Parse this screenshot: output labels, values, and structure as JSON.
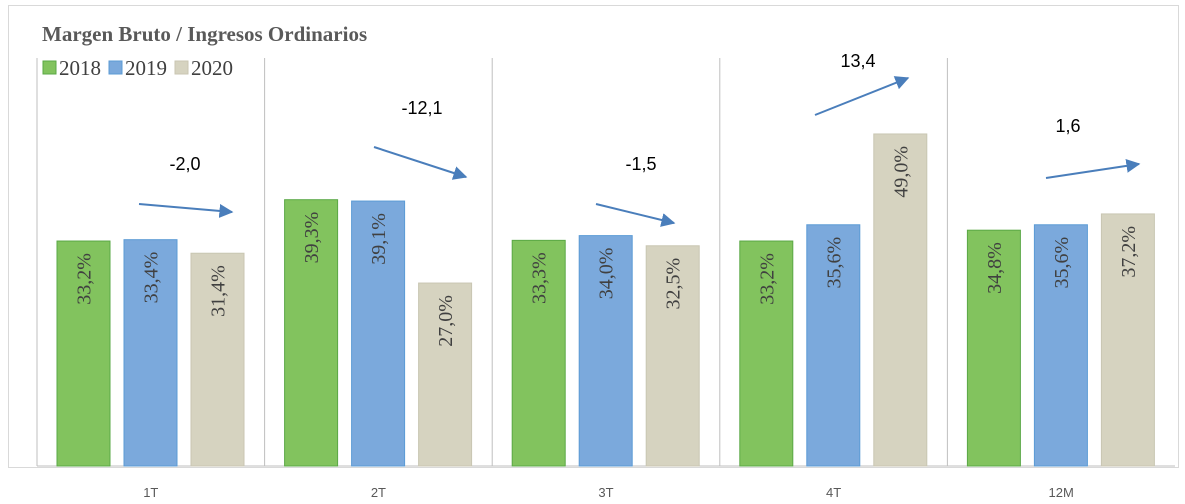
{
  "chart_data": {
    "type": "bar",
    "title": "Margen Bruto / Ingresos Ordinarios",
    "categories": [
      "1T",
      "2T",
      "3T",
      "4T",
      "12M"
    ],
    "series": [
      {
        "name": "2018",
        "color": "#82c35e",
        "values": [
          33.2,
          39.3,
          33.3,
          33.2,
          34.8
        ],
        "value_labels": [
          "33,2%",
          "39,3%",
          "33,3%",
          "33,2%",
          "34,8%"
        ]
      },
      {
        "name": "2019",
        "color": "#7ba9dc",
        "values": [
          33.4,
          39.1,
          34.0,
          35.6,
          35.6
        ],
        "value_labels": [
          "33,4%",
          "39,1%",
          "34,0%",
          "35,6%",
          "35,6%"
        ]
      },
      {
        "name": "2020",
        "color": "#d6d3c0",
        "values": [
          31.4,
          27.0,
          32.5,
          49.0,
          37.2
        ],
        "value_labels": [
          "31,4%",
          "27,0%",
          "32,5%",
          "49,0%",
          "37,2%"
        ]
      }
    ],
    "annotations": [
      "-2,0",
      "-12,1",
      "-1,5",
      "13,4",
      "1,6"
    ],
    "ylim": [
      0,
      67
    ]
  }
}
